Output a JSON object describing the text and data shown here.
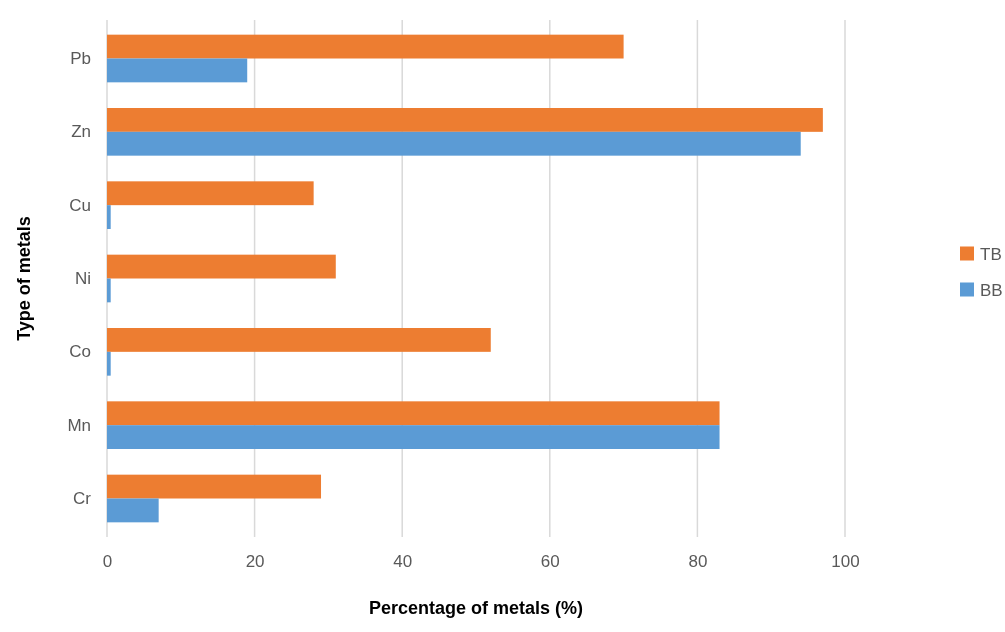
{
  "chart_data": {
    "type": "bar",
    "orientation": "horizontal",
    "xlabel": "Percentage of metals (%)",
    "ylabel": "Type of metals",
    "categories": [
      "Pb",
      "Zn",
      "Cu",
      "Ni",
      "Co",
      "Mn",
      "Cr"
    ],
    "series": [
      {
        "name": "TB",
        "color": "#ed7d31",
        "values": [
          70,
          97,
          28,
          31,
          52,
          83,
          29
        ]
      },
      {
        "name": "BB",
        "color": "#5b9bd5",
        "values": [
          19,
          94,
          0.5,
          0.5,
          0.5,
          83,
          7
        ]
      }
    ],
    "xlim": [
      0,
      100
    ],
    "xticks": [
      0,
      20,
      40,
      60,
      80,
      100
    ],
    "grid": "x",
    "legend": "right"
  }
}
